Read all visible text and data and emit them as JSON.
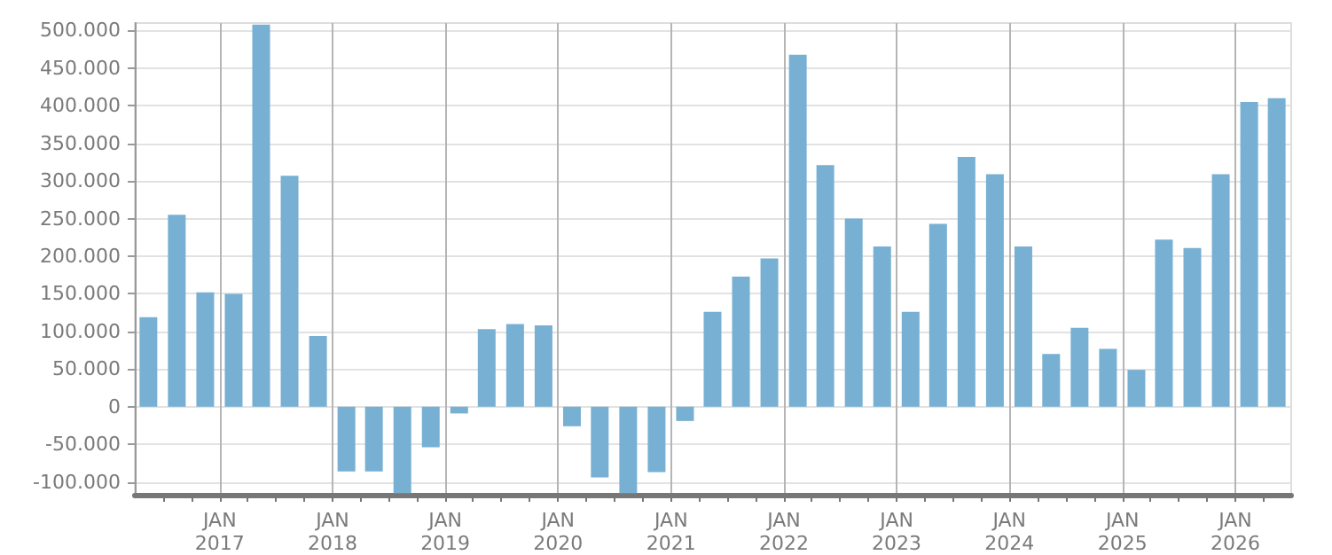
{
  "chart_data": {
    "type": "bar",
    "color": "#77b0d3",
    "grid": true,
    "x": [
      "2016-05-15",
      "2016-08-15",
      "2016-11-15",
      "2017-02-15",
      "2017-05-15",
      "2017-08-15",
      "2017-11-15",
      "2018-02-15",
      "2018-05-15",
      "2018-08-15",
      "2018-11-15",
      "2019-02-15",
      "2019-05-15",
      "2019-08-15",
      "2019-11-15",
      "2020-02-15",
      "2020-05-15",
      "2020-08-15",
      "2020-11-15",
      "2021-02-15",
      "2021-05-15",
      "2021-08-15",
      "2021-11-15",
      "2022-02-15",
      "2022-05-15",
      "2022-08-15",
      "2022-11-15",
      "2023-02-15",
      "2023-05-15",
      "2023-08-15",
      "2023-11-15",
      "2024-02-15",
      "2024-05-15",
      "2024-08-15",
      "2024-11-15",
      "2025-02-15",
      "2025-05-15",
      "2025-08-15",
      "2025-11-15",
      "2026-02-15",
      "2026-05-15"
    ],
    "values": [
      119000,
      255000,
      152000,
      150000,
      508000,
      307000,
      94000,
      -86000,
      -86000,
      -115000,
      -54000,
      -9000,
      103000,
      110000,
      108000,
      -26000,
      -94000,
      -115000,
      -87000,
      -19000,
      126000,
      173000,
      197000,
      468000,
      321000,
      250000,
      213000,
      126000,
      243000,
      332000,
      309000,
      213000,
      70000,
      105000,
      77000,
      49000,
      222000,
      211000,
      309000,
      405000,
      410000
    ],
    "xlim": [
      "2016-04-01",
      "2026-07-01"
    ],
    "xticks": [
      {
        "value": "2016-07-01",
        "label": null
      },
      {
        "value": "2016-10-01",
        "label": null
      },
      {
        "value": "2017-01-01",
        "label": "JAN\n2017"
      },
      {
        "value": "2017-04-01",
        "label": null
      },
      {
        "value": "2017-07-01",
        "label": null
      },
      {
        "value": "2017-10-01",
        "label": null
      },
      {
        "value": "2018-01-01",
        "label": "JAN\n2018"
      },
      {
        "value": "2018-04-01",
        "label": null
      },
      {
        "value": "2018-07-01",
        "label": null
      },
      {
        "value": "2018-10-01",
        "label": null
      },
      {
        "value": "2019-01-01",
        "label": "JAN\n2019"
      },
      {
        "value": "2019-04-01",
        "label": null
      },
      {
        "value": "2019-07-01",
        "label": null
      },
      {
        "value": "2019-10-01",
        "label": null
      },
      {
        "value": "2020-01-01",
        "label": "JAN\n2020"
      },
      {
        "value": "2020-04-01",
        "label": null
      },
      {
        "value": "2020-07-01",
        "label": null
      },
      {
        "value": "2020-10-01",
        "label": null
      },
      {
        "value": "2021-01-01",
        "label": "JAN\n2021"
      },
      {
        "value": "2021-04-01",
        "label": null
      },
      {
        "value": "2021-07-01",
        "label": null
      },
      {
        "value": "2021-10-01",
        "label": null
      },
      {
        "value": "2022-01-01",
        "label": "JAN\n2022"
      },
      {
        "value": "2022-04-01",
        "label": null
      },
      {
        "value": "2022-07-01",
        "label": null
      },
      {
        "value": "2022-10-01",
        "label": null
      },
      {
        "value": "2023-01-01",
        "label": "JAN\n2023"
      },
      {
        "value": "2023-04-01",
        "label": null
      },
      {
        "value": "2023-07-01",
        "label": null
      },
      {
        "value": "2023-10-01",
        "label": null
      },
      {
        "value": "2024-01-01",
        "label": "JAN\n2024"
      },
      {
        "value": "2024-04-01",
        "label": null
      },
      {
        "value": "2024-07-01",
        "label": null
      },
      {
        "value": "2024-10-01",
        "label": null
      },
      {
        "value": "2025-01-01",
        "label": "JAN\n2025"
      },
      {
        "value": "2025-04-01",
        "label": null
      },
      {
        "value": "2025-07-01",
        "label": null
      },
      {
        "value": "2025-10-01",
        "label": null
      },
      {
        "value": "2026-01-01",
        "label": "JAN\n2026"
      },
      {
        "value": "2026-04-01",
        "label": null
      }
    ],
    "ylim": [
      -117000,
      510000
    ],
    "yticks": [
      {
        "value": -100000,
        "label": "-100.000"
      },
      {
        "value": -50000,
        "label": "-50.000"
      },
      {
        "value": 0,
        "label": "0"
      },
      {
        "value": 50000,
        "label": "50.000"
      },
      {
        "value": 100000,
        "label": "100.000"
      },
      {
        "value": 150000,
        "label": "150.000"
      },
      {
        "value": 200000,
        "label": "200.000"
      },
      {
        "value": 250000,
        "label": "250.000"
      },
      {
        "value": 300000,
        "label": "300.000"
      },
      {
        "value": 350000,
        "label": "350.000"
      },
      {
        "value": 400000,
        "label": "400.000"
      },
      {
        "value": 450000,
        "label": "450.000"
      },
      {
        "value": 500000,
        "label": "500.000"
      }
    ]
  }
}
